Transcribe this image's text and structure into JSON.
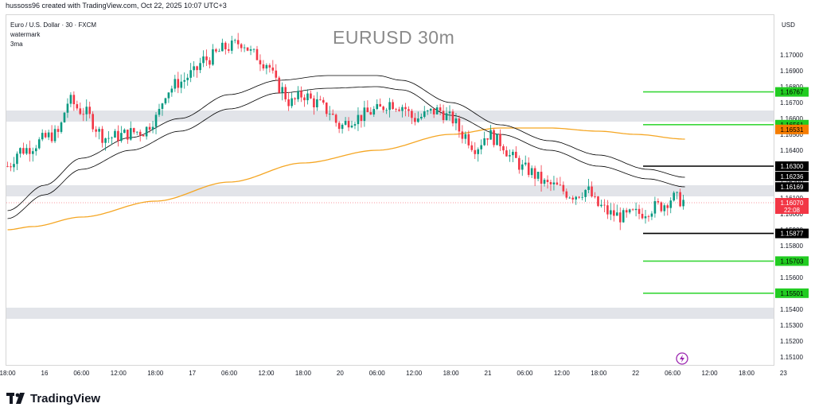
{
  "header": {
    "attribution": "hussoss96 created with TradingView.com, Oct 22, 2025 10:07 UTC+3"
  },
  "legend": {
    "symbol": "Euro / U.S. Dollar · 30 · FXCM",
    "line2": "watermark",
    "line3": "3ma"
  },
  "watermark": {
    "text": "EURUSD 30m"
  },
  "brand": {
    "name": "TradingView",
    "icon": "tradingview-logo-icon"
  },
  "chart_data": {
    "type": "candlestick",
    "title": "EURUSD 30m",
    "currency": "USD",
    "ylim": [
      1.1505,
      1.1725
    ],
    "y_ticks": [
      1.17,
      1.169,
      1.168,
      1.167,
      1.166,
      1.165,
      1.164,
      1.162,
      1.161,
      1.16,
      1.159,
      1.158,
      1.156,
      1.155,
      1.154,
      1.153,
      1.152,
      1.151
    ],
    "y_tick_labels": [
      "1.17000",
      "1.16900",
      "1.16800",
      "1.16700",
      "1.16600",
      "1.16500",
      "1.16400",
      "1.16200",
      "1.16100",
      "1.16000",
      "1.15900",
      "1.15800",
      "1.15600",
      "1.15500",
      "1.15400",
      "1.15300",
      "1.15200",
      "1.15100"
    ],
    "x_ticks": [
      0,
      3,
      6,
      9,
      12,
      15,
      18,
      21,
      24,
      27,
      30,
      33,
      36,
      39,
      42,
      45,
      48,
      51,
      54,
      57,
      60,
      63,
      66
    ],
    "x_tick_labels": [
      "18:00",
      "16",
      "06:00",
      "12:00",
      "18:00",
      "17",
      "06:00",
      "12:00",
      "18:00",
      "20",
      "06:00",
      "12:00",
      "18:00",
      "21",
      "06:00",
      "12:00",
      "18:00",
      "22",
      "06:00",
      "12:00",
      "18:00",
      "23",
      ""
    ],
    "x_range": [
      -0.1,
      62.2
    ],
    "ohlc_keypoints": [
      [
        0,
        1.163
      ],
      [
        1,
        1.164
      ],
      [
        4,
        1.165
      ],
      [
        5,
        1.1671
      ],
      [
        6,
        1.1665
      ],
      [
        8,
        1.1648
      ],
      [
        11,
        1.1652
      ],
      [
        12,
        1.166
      ],
      [
        13,
        1.1678
      ],
      [
        14,
        1.1683
      ],
      [
        15,
        1.1688
      ],
      [
        16,
        1.1697
      ],
      [
        18,
        1.1705
      ],
      [
        19,
        1.1708
      ],
      [
        20,
        1.17
      ],
      [
        21,
        1.1695
      ],
      [
        22,
        1.168
      ],
      [
        23,
        1.167
      ],
      [
        24,
        1.1675
      ],
      [
        25,
        1.167
      ],
      [
        26,
        1.1665
      ],
      [
        27,
        1.1655
      ],
      [
        28,
        1.166
      ],
      [
        30,
        1.1665
      ],
      [
        31,
        1.167
      ],
      [
        32,
        1.1668
      ],
      [
        33,
        1.166
      ],
      [
        35,
        1.1665
      ],
      [
        36,
        1.166
      ],
      [
        37,
        1.165
      ],
      [
        38,
        1.1642
      ],
      [
        39,
        1.165
      ],
      [
        40,
        1.1645
      ],
      [
        41,
        1.1635
      ],
      [
        42,
        1.1628
      ],
      [
        44,
        1.1618
      ],
      [
        46,
        1.1612
      ],
      [
        47,
        1.1615
      ],
      [
        48,
        1.1605
      ],
      [
        49,
        1.16
      ],
      [
        50,
        1.1598
      ],
      [
        51,
        1.16
      ],
      [
        53,
        1.1605
      ],
      [
        54,
        1.161
      ],
      [
        55,
        1.1608
      ]
    ],
    "moving_averages": [
      {
        "color": "#f5a623",
        "points": [
          [
            0,
            1.159
          ],
          [
            2,
            1.1592
          ],
          [
            6,
            1.1598
          ],
          [
            12,
            1.1608
          ],
          [
            18,
            1.162
          ],
          [
            24,
            1.1632
          ],
          [
            30,
            1.164
          ],
          [
            36,
            1.165
          ],
          [
            40,
            1.1654
          ],
          [
            44,
            1.1654
          ],
          [
            48,
            1.1652
          ],
          [
            51,
            1.165
          ],
          [
            55,
            1.1647
          ]
        ]
      },
      {
        "color": "#000000",
        "points": [
          [
            0,
            1.1602
          ],
          [
            3,
            1.1618
          ],
          [
            6,
            1.1635
          ],
          [
            10,
            1.1648
          ],
          [
            14,
            1.166
          ],
          [
            18,
            1.1675
          ],
          [
            22,
            1.1684
          ],
          [
            26,
            1.1687
          ],
          [
            30,
            1.1687
          ],
          [
            32,
            1.1684
          ],
          [
            36,
            1.167
          ],
          [
            40,
            1.1656
          ],
          [
            44,
            1.1646
          ],
          [
            48,
            1.1637
          ],
          [
            52,
            1.1628
          ],
          [
            55,
            1.1623
          ]
        ]
      },
      {
        "color": "#000000",
        "points": [
          [
            0,
            1.1597
          ],
          [
            3,
            1.1612
          ],
          [
            6,
            1.1628
          ],
          [
            10,
            1.164
          ],
          [
            14,
            1.1652
          ],
          [
            18,
            1.1666
          ],
          [
            22,
            1.1676
          ],
          [
            26,
            1.1679
          ],
          [
            30,
            1.168
          ],
          [
            32,
            1.1678
          ],
          [
            36,
            1.1662
          ],
          [
            40,
            1.165
          ],
          [
            44,
            1.164
          ],
          [
            48,
            1.163
          ],
          [
            52,
            1.1622
          ],
          [
            55,
            1.1617
          ]
        ]
      }
    ],
    "zones": [
      {
        "from": 1.1658,
        "to": 1.1665,
        "color": "#e2e4e9"
      },
      {
        "from": 1.1611,
        "to": 1.1618,
        "color": "#e2e4e9"
      },
      {
        "from": 1.1534,
        "to": 1.1541,
        "color": "#e2e4e9"
      }
    ],
    "levels": [
      {
        "price": 1.16767,
        "label": "1.16767",
        "color": "#3ad73a",
        "badge": "#22cc22",
        "text_color": "#000000"
      },
      {
        "price": 1.16561,
        "label": "1.16561",
        "color": "#3ad73a",
        "badge": "#22cc22",
        "text_color": "#000000"
      },
      {
        "price": 1.163,
        "label": "1.16300",
        "color": "#000000",
        "badge": "#000000",
        "text_color": "#ffffff"
      },
      {
        "price": 1.15877,
        "label": "1.15877",
        "color": "#000000",
        "badge": "#000000",
        "text_color": "#ffffff"
      },
      {
        "price": 1.15703,
        "label": "1.15703",
        "color": "#3ad73a",
        "badge": "#22cc22",
        "text_color": "#000000"
      },
      {
        "price": 1.15501,
        "label": "1.15501",
        "color": "#3ad73a",
        "badge": "#22cc22",
        "text_color": "#000000"
      }
    ],
    "price_badges": [
      {
        "price": 1.16531,
        "label": "1.16531",
        "bg": "#f57c00",
        "text_color": "#000000"
      },
      {
        "price": 1.16236,
        "label": "1.16236",
        "bg": "#000000",
        "text_color": "#ffffff"
      },
      {
        "price": 1.16169,
        "label": "1.16169",
        "bg": "#000000",
        "text_color": "#ffffff"
      }
    ],
    "current_price": {
      "price": 1.1607,
      "label": "1.16070",
      "countdown": "22:08",
      "bg": "#f23645"
    },
    "colors": {
      "up": "#089981",
      "down": "#f23645",
      "grid": "#f3f3f3",
      "axis_text": "#131722"
    }
  }
}
